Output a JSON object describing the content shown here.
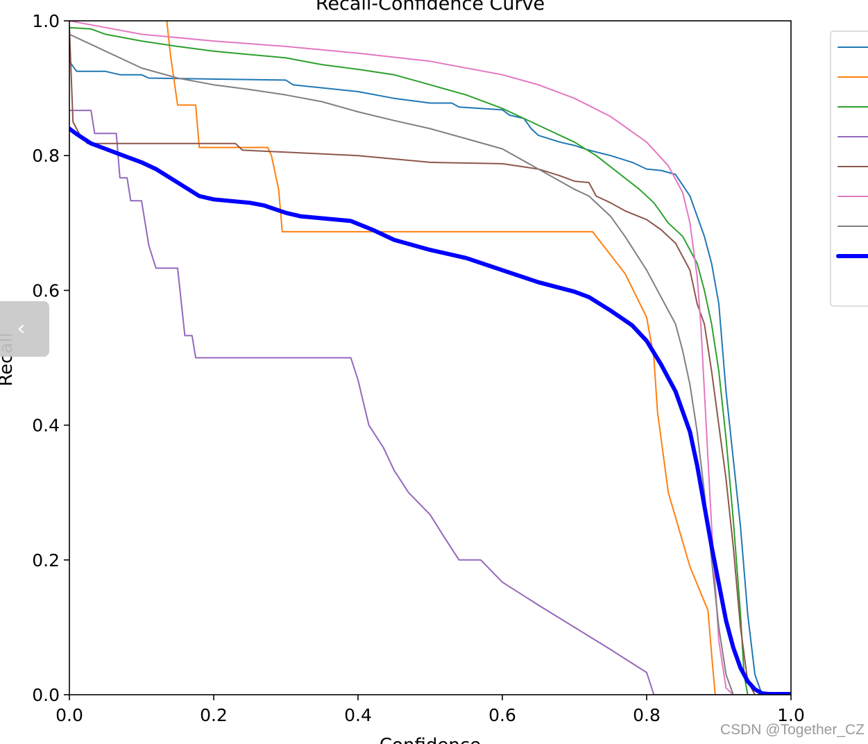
{
  "chart_data": {
    "type": "line",
    "title": "Recall-Confidence Curve",
    "xlabel": "Confidence",
    "ylabel": "Recall",
    "xlim": [
      0,
      1
    ],
    "ylim": [
      0,
      1
    ],
    "xticks": [
      "0.0",
      "0.2",
      "0.4",
      "0.6",
      "0.8",
      "1.0"
    ],
    "yticks": [
      "0.0",
      "0.2",
      "0.4",
      "0.6",
      "0.8",
      "1.0"
    ],
    "grid": false,
    "legend": "right (cropped, labels not visible)",
    "series": [
      {
        "color": "#1f77b4",
        "width": 2,
        "points": [
          [
            0,
            0.94
          ],
          [
            0.01,
            0.925
          ],
          [
            0.05,
            0.925
          ],
          [
            0.07,
            0.92
          ],
          [
            0.1,
            0.92
          ],
          [
            0.11,
            0.915
          ],
          [
            0.3,
            0.912
          ],
          [
            0.31,
            0.905
          ],
          [
            0.4,
            0.895
          ],
          [
            0.45,
            0.885
          ],
          [
            0.5,
            0.878
          ],
          [
            0.53,
            0.878
          ],
          [
            0.54,
            0.872
          ],
          [
            0.6,
            0.868
          ],
          [
            0.61,
            0.86
          ],
          [
            0.63,
            0.855
          ],
          [
            0.64,
            0.84
          ],
          [
            0.65,
            0.83
          ],
          [
            0.68,
            0.82
          ],
          [
            0.7,
            0.815
          ],
          [
            0.72,
            0.808
          ],
          [
            0.75,
            0.8
          ],
          [
            0.78,
            0.79
          ],
          [
            0.8,
            0.78
          ],
          [
            0.82,
            0.778
          ],
          [
            0.84,
            0.772
          ],
          [
            0.86,
            0.74
          ],
          [
            0.87,
            0.71
          ],
          [
            0.88,
            0.68
          ],
          [
            0.89,
            0.64
          ],
          [
            0.9,
            0.58
          ],
          [
            0.91,
            0.45
          ],
          [
            0.92,
            0.35
          ],
          [
            0.93,
            0.25
          ],
          [
            0.94,
            0.12
          ],
          [
            0.95,
            0.03
          ],
          [
            0.96,
            0
          ],
          [
            1.0,
            0
          ]
        ]
      },
      {
        "color": "#ff7f0e",
        "width": 2,
        "points": [
          [
            0.135,
            1.0
          ],
          [
            0.14,
            0.95
          ],
          [
            0.15,
            0.875
          ],
          [
            0.175,
            0.875
          ],
          [
            0.18,
            0.812
          ],
          [
            0.275,
            0.812
          ],
          [
            0.28,
            0.8
          ],
          [
            0.29,
            0.75
          ],
          [
            0.295,
            0.687
          ],
          [
            0.725,
            0.687
          ],
          [
            0.77,
            0.625
          ],
          [
            0.8,
            0.56
          ],
          [
            0.81,
            0.5
          ],
          [
            0.815,
            0.42
          ],
          [
            0.83,
            0.3
          ],
          [
            0.86,
            0.19
          ],
          [
            0.885,
            0.125
          ],
          [
            0.89,
            0.06
          ],
          [
            0.895,
            0
          ],
          [
            1.0,
            0
          ]
        ]
      },
      {
        "color": "#2ca02c",
        "width": 2,
        "points": [
          [
            0,
            0.99
          ],
          [
            0.03,
            0.988
          ],
          [
            0.05,
            0.98
          ],
          [
            0.1,
            0.97
          ],
          [
            0.15,
            0.962
          ],
          [
            0.2,
            0.955
          ],
          [
            0.25,
            0.95
          ],
          [
            0.3,
            0.945
          ],
          [
            0.35,
            0.935
          ],
          [
            0.4,
            0.928
          ],
          [
            0.45,
            0.92
          ],
          [
            0.5,
            0.905
          ],
          [
            0.55,
            0.89
          ],
          [
            0.6,
            0.87
          ],
          [
            0.65,
            0.845
          ],
          [
            0.7,
            0.82
          ],
          [
            0.73,
            0.8
          ],
          [
            0.76,
            0.775
          ],
          [
            0.79,
            0.75
          ],
          [
            0.81,
            0.73
          ],
          [
            0.83,
            0.7
          ],
          [
            0.85,
            0.68
          ],
          [
            0.87,
            0.64
          ],
          [
            0.88,
            0.6
          ],
          [
            0.89,
            0.55
          ],
          [
            0.9,
            0.48
          ],
          [
            0.91,
            0.38
          ],
          [
            0.92,
            0.26
          ],
          [
            0.93,
            0.12
          ],
          [
            0.935,
            0.03
          ],
          [
            0.94,
            0
          ],
          [
            1.0,
            0
          ]
        ]
      },
      {
        "color": "#9467bd",
        "width": 2,
        "points": [
          [
            0,
            0.867
          ],
          [
            0.03,
            0.867
          ],
          [
            0.035,
            0.833
          ],
          [
            0.065,
            0.833
          ],
          [
            0.07,
            0.767
          ],
          [
            0.08,
            0.767
          ],
          [
            0.085,
            0.733
          ],
          [
            0.1,
            0.733
          ],
          [
            0.105,
            0.7
          ],
          [
            0.11,
            0.667
          ],
          [
            0.12,
            0.633
          ],
          [
            0.15,
            0.633
          ],
          [
            0.16,
            0.533
          ],
          [
            0.17,
            0.533
          ],
          [
            0.175,
            0.5
          ],
          [
            0.39,
            0.5
          ],
          [
            0.4,
            0.467
          ],
          [
            0.415,
            0.4
          ],
          [
            0.435,
            0.367
          ],
          [
            0.45,
            0.333
          ],
          [
            0.47,
            0.3
          ],
          [
            0.5,
            0.267
          ],
          [
            0.52,
            0.233
          ],
          [
            0.54,
            0.2
          ],
          [
            0.57,
            0.2
          ],
          [
            0.6,
            0.167
          ],
          [
            0.65,
            0.133
          ],
          [
            0.7,
            0.1
          ],
          [
            0.75,
            0.067
          ],
          [
            0.8,
            0.033
          ],
          [
            0.81,
            0
          ],
          [
            1.0,
            0
          ]
        ]
      },
      {
        "color": "#8c564b",
        "width": 2,
        "points": [
          [
            0,
            0.99
          ],
          [
            0.005,
            0.85
          ],
          [
            0.015,
            0.83
          ],
          [
            0.025,
            0.818
          ],
          [
            0.23,
            0.818
          ],
          [
            0.24,
            0.808
          ],
          [
            0.3,
            0.805
          ],
          [
            0.4,
            0.8
          ],
          [
            0.5,
            0.79
          ],
          [
            0.6,
            0.788
          ],
          [
            0.65,
            0.78
          ],
          [
            0.68,
            0.77
          ],
          [
            0.7,
            0.762
          ],
          [
            0.72,
            0.76
          ],
          [
            0.73,
            0.74
          ],
          [
            0.75,
            0.73
          ],
          [
            0.77,
            0.718
          ],
          [
            0.8,
            0.705
          ],
          [
            0.82,
            0.69
          ],
          [
            0.84,
            0.67
          ],
          [
            0.86,
            0.63
          ],
          [
            0.87,
            0.58
          ],
          [
            0.88,
            0.55
          ],
          [
            0.89,
            0.48
          ],
          [
            0.9,
            0.4
          ],
          [
            0.91,
            0.32
          ],
          [
            0.92,
            0.22
          ],
          [
            0.93,
            0.1
          ],
          [
            0.94,
            0.02
          ],
          [
            0.95,
            0
          ],
          [
            1.0,
            0
          ]
        ]
      },
      {
        "color": "#e377c2",
        "width": 2,
        "points": [
          [
            0,
            1.0
          ],
          [
            0.05,
            0.99
          ],
          [
            0.1,
            0.98
          ],
          [
            0.2,
            0.97
          ],
          [
            0.3,
            0.962
          ],
          [
            0.4,
            0.952
          ],
          [
            0.5,
            0.94
          ],
          [
            0.6,
            0.92
          ],
          [
            0.65,
            0.905
          ],
          [
            0.7,
            0.885
          ],
          [
            0.75,
            0.858
          ],
          [
            0.8,
            0.82
          ],
          [
            0.83,
            0.785
          ],
          [
            0.85,
            0.745
          ],
          [
            0.86,
            0.7
          ],
          [
            0.87,
            0.62
          ],
          [
            0.875,
            0.55
          ],
          [
            0.88,
            0.45
          ],
          [
            0.885,
            0.35
          ],
          [
            0.89,
            0.25
          ],
          [
            0.9,
            0.08
          ],
          [
            0.91,
            0.01
          ],
          [
            0.92,
            0
          ],
          [
            1.0,
            0
          ]
        ]
      },
      {
        "color": "#7f7f7f",
        "width": 2,
        "points": [
          [
            0,
            0.98
          ],
          [
            0.05,
            0.955
          ],
          [
            0.1,
            0.93
          ],
          [
            0.15,
            0.915
          ],
          [
            0.2,
            0.905
          ],
          [
            0.25,
            0.898
          ],
          [
            0.3,
            0.89
          ],
          [
            0.35,
            0.88
          ],
          [
            0.4,
            0.865
          ],
          [
            0.45,
            0.852
          ],
          [
            0.5,
            0.84
          ],
          [
            0.55,
            0.825
          ],
          [
            0.6,
            0.81
          ],
          [
            0.65,
            0.78
          ],
          [
            0.7,
            0.75
          ],
          [
            0.72,
            0.74
          ],
          [
            0.75,
            0.71
          ],
          [
            0.77,
            0.68
          ],
          [
            0.8,
            0.63
          ],
          [
            0.82,
            0.59
          ],
          [
            0.84,
            0.55
          ],
          [
            0.85,
            0.51
          ],
          [
            0.86,
            0.46
          ],
          [
            0.87,
            0.39
          ],
          [
            0.88,
            0.3
          ],
          [
            0.89,
            0.2
          ],
          [
            0.9,
            0.1
          ],
          [
            0.91,
            0.03
          ],
          [
            0.92,
            0
          ],
          [
            1.0,
            0
          ]
        ]
      },
      {
        "color": "#0000ff",
        "width": 6,
        "points": [
          [
            0,
            0.84
          ],
          [
            0.01,
            0.832
          ],
          [
            0.03,
            0.818
          ],
          [
            0.05,
            0.81
          ],
          [
            0.07,
            0.802
          ],
          [
            0.1,
            0.79
          ],
          [
            0.12,
            0.78
          ],
          [
            0.15,
            0.76
          ],
          [
            0.18,
            0.74
          ],
          [
            0.2,
            0.735
          ],
          [
            0.25,
            0.73
          ],
          [
            0.27,
            0.726
          ],
          [
            0.3,
            0.715
          ],
          [
            0.32,
            0.71
          ],
          [
            0.35,
            0.707
          ],
          [
            0.39,
            0.703
          ],
          [
            0.42,
            0.69
          ],
          [
            0.45,
            0.675
          ],
          [
            0.5,
            0.66
          ],
          [
            0.55,
            0.648
          ],
          [
            0.6,
            0.63
          ],
          [
            0.65,
            0.612
          ],
          [
            0.7,
            0.598
          ],
          [
            0.72,
            0.59
          ],
          [
            0.75,
            0.57
          ],
          [
            0.78,
            0.548
          ],
          [
            0.8,
            0.525
          ],
          [
            0.82,
            0.49
          ],
          [
            0.84,
            0.45
          ],
          [
            0.86,
            0.39
          ],
          [
            0.87,
            0.34
          ],
          [
            0.88,
            0.28
          ],
          [
            0.89,
            0.22
          ],
          [
            0.9,
            0.165
          ],
          [
            0.91,
            0.11
          ],
          [
            0.92,
            0.07
          ],
          [
            0.93,
            0.04
          ],
          [
            0.94,
            0.02
          ],
          [
            0.95,
            0.008
          ],
          [
            0.96,
            0.002
          ],
          [
            0.97,
            0.001
          ],
          [
            1.0,
            0.001
          ]
        ]
      }
    ]
  },
  "watermark": {
    "text": "CSDN @Together_CZ"
  },
  "collapse_handle": {
    "icon": "chevron-left-icon",
    "glyph": "‹"
  }
}
